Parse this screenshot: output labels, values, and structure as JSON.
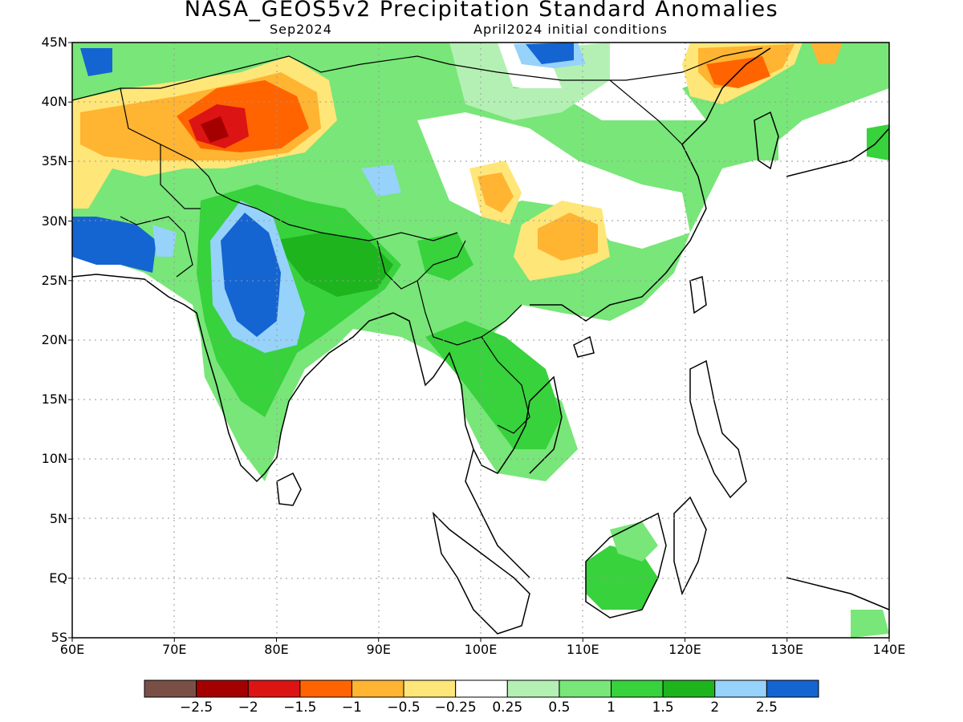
{
  "title": "NASA_GEOS5v2 Precipitation Standard Anomalies",
  "subtitle_left": "Sep2024",
  "subtitle_right": "April2024 initial conditions",
  "map": {
    "lon_range": [
      60,
      140
    ],
    "lat_range": [
      -5,
      45
    ],
    "x_ticks": [
      "60E",
      "70E",
      "80E",
      "90E",
      "100E",
      "110E",
      "120E",
      "130E",
      "140E"
    ],
    "y_ticks": [
      "45N",
      "40N",
      "35N",
      "30N",
      "25N",
      "20N",
      "15N",
      "10N",
      "5N",
      "EQ",
      "5S"
    ],
    "grid": true
  },
  "colorbar": {
    "colors": [
      "#7a5046",
      "#a50000",
      "#dc1414",
      "#ff6400",
      "#ffb432",
      "#ffe678",
      "#ffffff",
      "#b4f0b4",
      "#78e678",
      "#37d23c",
      "#1eb41e",
      "#96d2fa",
      "#1464d2"
    ],
    "tick_labels": [
      "-2.5",
      "-2",
      "-1.5",
      "-1",
      "-0.5",
      "-0.25",
      "0.25",
      "0.5",
      "1",
      "1.5",
      "2",
      "2.5"
    ]
  }
}
